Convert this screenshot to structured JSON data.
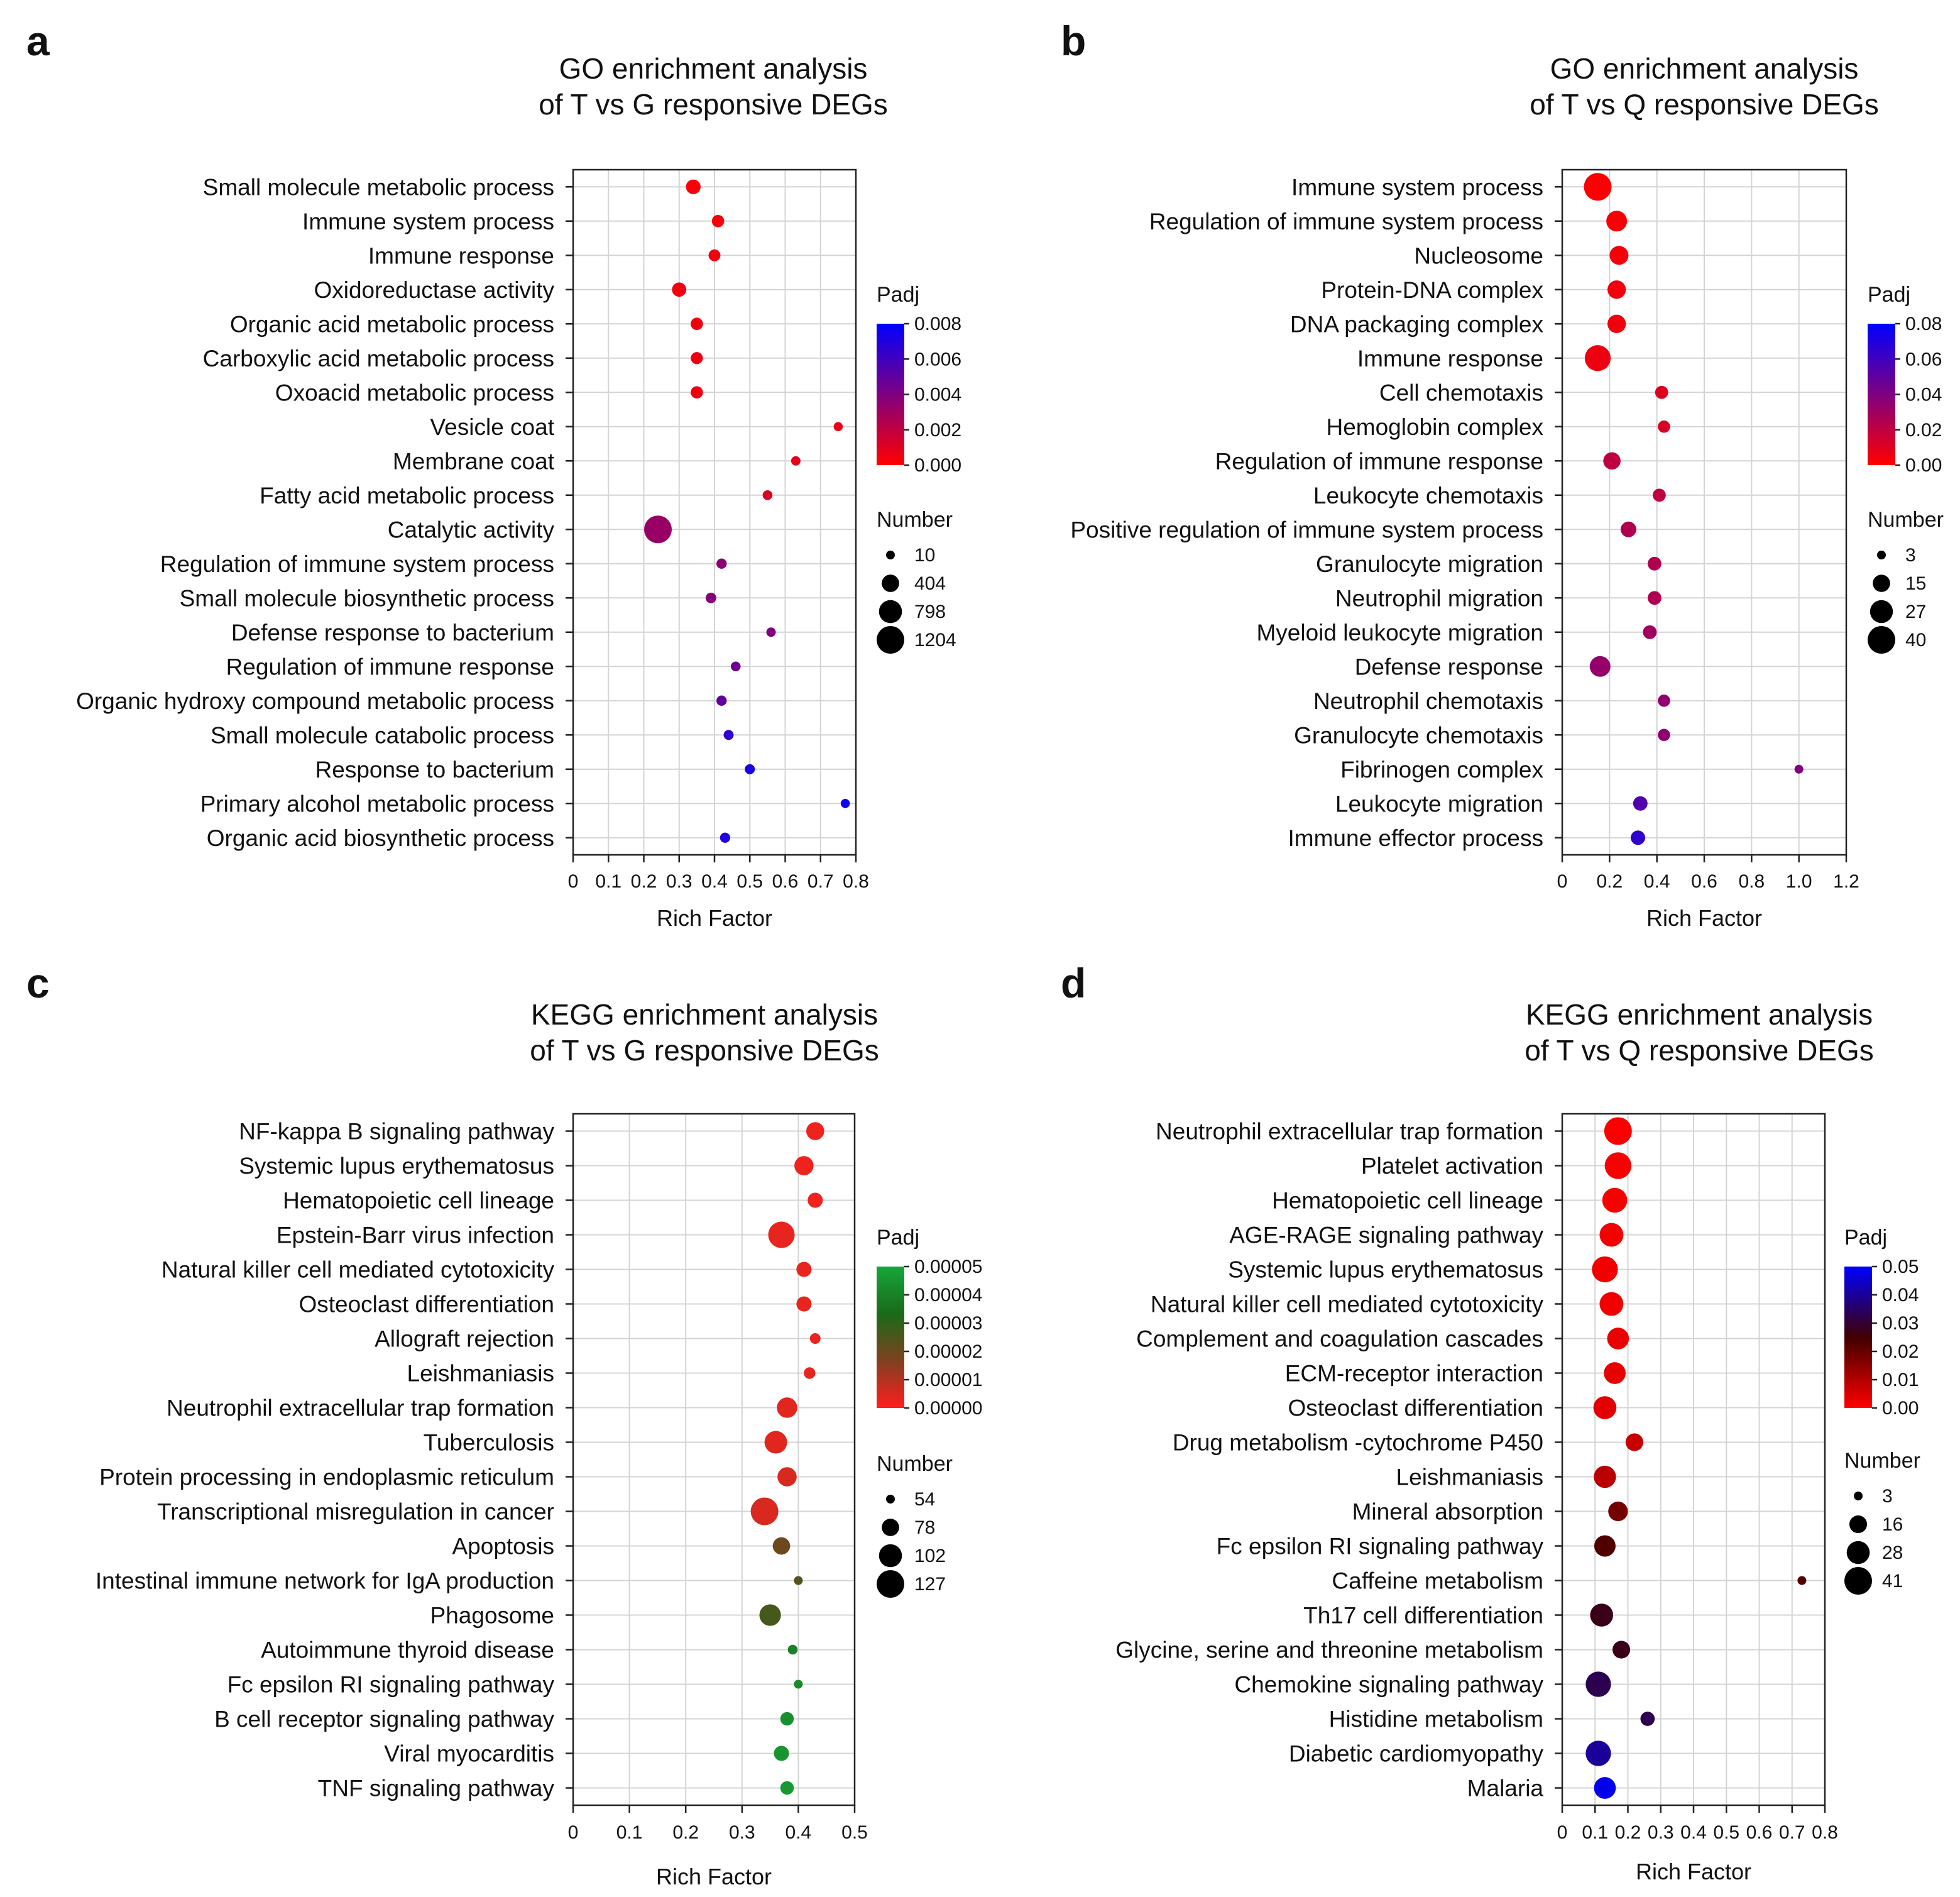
{
  "chart_data": [
    {
      "panel": "a",
      "type": "scatter",
      "title": "GO enrichment analysis\nof T vs G responsive DEGs",
      "xlabel": "Rich Factor",
      "ylabel": "",
      "xlim": [
        0,
        0.8
      ],
      "xticks": [
        0,
        0.1,
        0.2,
        0.3,
        0.4,
        0.5,
        0.6,
        0.7,
        0.8
      ],
      "xtick_labels": [
        "0",
        "0.1",
        "0.2",
        "0.3",
        "0.4",
        "0.5",
        "0.6",
        "0.7",
        "0.8"
      ],
      "grid": true,
      "color_legend": {
        "title": "Padj",
        "ticks": [
          "0.008",
          "0.006",
          "0.004",
          "0.002",
          "0.000"
        ],
        "min": 0,
        "max": 0.008,
        "colors": [
          "#ff0000",
          "#0000ff"
        ]
      },
      "size_legend": {
        "title": "Number",
        "values": [
          10,
          404,
          798,
          1204
        ],
        "labels": [
          "10",
          "404",
          "798",
          "1204"
        ]
      },
      "points": [
        {
          "term": "Small molecule metabolic process",
          "x": 0.34,
          "padj": 0.0002,
          "number": 250
        },
        {
          "term": "Immune system process",
          "x": 0.41,
          "padj": 0.0003,
          "number": 140
        },
        {
          "term": "Immune response",
          "x": 0.4,
          "padj": 0.0004,
          "number": 120
        },
        {
          "term": "Oxidoreductase activity",
          "x": 0.3,
          "padj": 0.0004,
          "number": 230
        },
        {
          "term": "Organic acid metabolic process",
          "x": 0.35,
          "padj": 0.0005,
          "number": 140
        },
        {
          "term": "Carboxylic acid metabolic process",
          "x": 0.35,
          "padj": 0.0005,
          "number": 130
        },
        {
          "term": "Oxoacid metabolic process",
          "x": 0.35,
          "padj": 0.0005,
          "number": 135
        },
        {
          "term": "Vesicle coat",
          "x": 0.75,
          "padj": 0.0007,
          "number": 20
        },
        {
          "term": "Membrane coat",
          "x": 0.63,
          "padj": 0.0008,
          "number": 30
        },
        {
          "term": "Fatty acid metabolic process",
          "x": 0.55,
          "padj": 0.0012,
          "number": 40
        },
        {
          "term": "Catalytic activity",
          "x": 0.24,
          "padj": 0.0032,
          "number": 1204
        },
        {
          "term": "Regulation of immune system process",
          "x": 0.42,
          "padj": 0.0036,
          "number": 60
        },
        {
          "term": "Small molecule biosynthetic process",
          "x": 0.39,
          "padj": 0.0038,
          "number": 70
        },
        {
          "term": "Defense response to bacterium",
          "x": 0.56,
          "padj": 0.004,
          "number": 30
        },
        {
          "term": "Regulation of immune response",
          "x": 0.46,
          "padj": 0.0045,
          "number": 40
        },
        {
          "term": "Organic hydroxy compound metabolic process",
          "x": 0.42,
          "padj": 0.005,
          "number": 60
        },
        {
          "term": "Small molecule catabolic process",
          "x": 0.44,
          "padj": 0.0065,
          "number": 50
        },
        {
          "term": "Response to bacterium",
          "x": 0.5,
          "padj": 0.0072,
          "number": 50
        },
        {
          "term": "Primary alcohol metabolic process",
          "x": 0.77,
          "padj": 0.0075,
          "number": 20
        },
        {
          "term": "Organic acid biosynthetic process",
          "x": 0.43,
          "padj": 0.007,
          "number": 55
        }
      ]
    },
    {
      "panel": "b",
      "type": "scatter",
      "title": "GO enrichment analysis\nof T vs Q responsive DEGs",
      "xlabel": "Rich Factor",
      "ylabel": "",
      "xlim": [
        0,
        1.2
      ],
      "xticks": [
        0,
        0.2,
        0.4,
        0.6,
        0.8,
        1.0,
        1.2
      ],
      "xtick_labels": [
        "0",
        "0.2",
        "0.4",
        "0.6",
        "0.8",
        "1.0",
        "1.2"
      ],
      "grid": true,
      "color_legend": {
        "title": "Padj",
        "ticks": [
          "0.08",
          "0.06",
          "0.04",
          "0.02",
          "0.00"
        ],
        "min": 0,
        "max": 0.08,
        "colors": [
          "#ff0000",
          "#0000ff"
        ]
      },
      "size_legend": {
        "title": "Number",
        "values": [
          3,
          15,
          27,
          40
        ],
        "labels": [
          "3",
          "15",
          "27",
          "40"
        ]
      },
      "points": [
        {
          "term": "Immune system process",
          "x": 0.15,
          "padj": 0.001,
          "number": 40
        },
        {
          "term": "Regulation of immune system process",
          "x": 0.23,
          "padj": 0.002,
          "number": 22
        },
        {
          "term": "Nucleosome",
          "x": 0.24,
          "padj": 0.003,
          "number": 18
        },
        {
          "term": "Protein-DNA complex",
          "x": 0.23,
          "padj": 0.004,
          "number": 17
        },
        {
          "term": "DNA packaging complex",
          "x": 0.23,
          "padj": 0.004,
          "number": 17
        },
        {
          "term": "Immune response",
          "x": 0.15,
          "padj": 0.005,
          "number": 35
        },
        {
          "term": "Cell chemotaxis",
          "x": 0.42,
          "padj": 0.01,
          "number": 8
        },
        {
          "term": "Hemoglobin complex",
          "x": 0.43,
          "padj": 0.012,
          "number": 7
        },
        {
          "term": "Regulation of immune response",
          "x": 0.21,
          "padj": 0.02,
          "number": 15
        },
        {
          "term": "Leukocyte chemotaxis",
          "x": 0.41,
          "padj": 0.02,
          "number": 8
        },
        {
          "term": "Positive regulation of immune system process",
          "x": 0.28,
          "padj": 0.025,
          "number": 12
        },
        {
          "term": "Granulocyte migration",
          "x": 0.39,
          "padj": 0.025,
          "number": 9
        },
        {
          "term": "Neutrophil migration",
          "x": 0.39,
          "padj": 0.025,
          "number": 9
        },
        {
          "term": "Myeloid leukocyte migration",
          "x": 0.37,
          "padj": 0.03,
          "number": 9
        },
        {
          "term": "Defense response",
          "x": 0.16,
          "padj": 0.033,
          "number": 22
        },
        {
          "term": "Neutrophil chemotaxis",
          "x": 0.43,
          "padj": 0.035,
          "number": 7
        },
        {
          "term": "Granulocyte chemotaxis",
          "x": 0.43,
          "padj": 0.035,
          "number": 7
        },
        {
          "term": "Fibrinogen complex",
          "x": 1.0,
          "padj": 0.04,
          "number": 3
        },
        {
          "term": "Leukocyte migration",
          "x": 0.33,
          "padj": 0.055,
          "number": 10
        },
        {
          "term": "Immune effector process",
          "x": 0.32,
          "padj": 0.065,
          "number": 10
        }
      ]
    },
    {
      "panel": "c",
      "type": "scatter",
      "title": "KEGG enrichment analysis\nof T vs G responsive DEGs",
      "xlabel": "Rich Factor",
      "ylabel": "",
      "xlim": [
        0,
        0.5
      ],
      "xticks": [
        0,
        0.1,
        0.2,
        0.3,
        0.4,
        0.5
      ],
      "xtick_labels": [
        "0",
        "0.1",
        "0.2",
        "0.3",
        "0.4",
        "0.5"
      ],
      "grid": true,
      "color_legend": {
        "title": "Padj",
        "ticks": [
          "0.00005",
          "0.00004",
          "0.00003",
          "0.00002",
          "0.00001",
          "0.00000"
        ],
        "min": 0,
        "max": 5e-05,
        "colors": [
          "#ff1e1e",
          "#804020",
          "#1a6a1a",
          "#17a63a"
        ]
      },
      "size_legend": {
        "title": "Number",
        "values": [
          54,
          78,
          102,
          127
        ],
        "labels": [
          "54",
          "78",
          "102",
          "127"
        ]
      },
      "points": [
        {
          "term": "NF-kappa B signaling pathway",
          "x": 0.43,
          "padj": 2e-06,
          "number": 80
        },
        {
          "term": "Systemic lupus erythematosus",
          "x": 0.41,
          "padj": 2e-06,
          "number": 85
        },
        {
          "term": "Hematopoietic cell lineage",
          "x": 0.43,
          "padj": 2e-06,
          "number": 70
        },
        {
          "term": "Epstein-Barr virus infection",
          "x": 0.37,
          "padj": 3e-06,
          "number": 120
        },
        {
          "term": "Natural killer cell mediated cytotoxicity",
          "x": 0.41,
          "padj": 3e-06,
          "number": 70
        },
        {
          "term": "Osteoclast differentiation",
          "x": 0.41,
          "padj": 3e-06,
          "number": 70
        },
        {
          "term": "Allograft rejection",
          "x": 0.43,
          "padj": 3e-06,
          "number": 58
        },
        {
          "term": "Leishmaniasis",
          "x": 0.42,
          "padj": 3e-06,
          "number": 60
        },
        {
          "term": "Neutrophil extracellular trap formation",
          "x": 0.38,
          "padj": 4e-06,
          "number": 90
        },
        {
          "term": "Tuberculosis",
          "x": 0.36,
          "padj": 4e-06,
          "number": 100
        },
        {
          "term": "Protein processing in endoplasmic reticulum",
          "x": 0.38,
          "padj": 5e-06,
          "number": 85
        },
        {
          "term": "Transcriptional misregulation in cancer",
          "x": 0.34,
          "padj": 5e-06,
          "number": 127
        },
        {
          "term": "Apoptosis",
          "x": 0.37,
          "padj": 2e-05,
          "number": 78
        },
        {
          "term": "Intestinal immune network for IgA production",
          "x": 0.4,
          "padj": 2.4e-05,
          "number": 54
        },
        {
          "term": "Phagosome",
          "x": 0.35,
          "padj": 2.6e-05,
          "number": 95
        },
        {
          "term": "Autoimmune thyroid disease",
          "x": 0.39,
          "padj": 4e-05,
          "number": 56
        },
        {
          "term": "Fc epsilon RI signaling pathway",
          "x": 0.4,
          "padj": 4.2e-05,
          "number": 54
        },
        {
          "term": "B cell receptor signaling pathway",
          "x": 0.38,
          "padj": 4.4e-05,
          "number": 65
        },
        {
          "term": "Viral myocarditis",
          "x": 0.37,
          "padj": 4.5e-05,
          "number": 70
        },
        {
          "term": "TNF signaling pathway",
          "x": 0.38,
          "padj": 4.6e-05,
          "number": 65
        }
      ]
    },
    {
      "panel": "d",
      "type": "scatter",
      "title": "KEGG enrichment analysis\nof T vs Q responsive DEGs",
      "xlabel": "Rich Factor",
      "ylabel": "",
      "xlim": [
        0,
        0.8
      ],
      "xticks": [
        0,
        0.1,
        0.2,
        0.3,
        0.4,
        0.5,
        0.6,
        0.7,
        0.8
      ],
      "xtick_labels": [
        "0",
        "0.1",
        "0.2",
        "0.3",
        "0.4",
        "0.5",
        "0.6",
        "0.7",
        "0.8"
      ],
      "grid": true,
      "color_legend": {
        "title": "Padj",
        "ticks": [
          "0.05",
          "0.04",
          "0.03",
          "0.02",
          "0.01",
          "0.00"
        ],
        "min": 0,
        "max": 0.055,
        "colors": [
          "#ff0000",
          "#400000",
          "#0000ff"
        ]
      },
      "size_legend": {
        "title": "Number",
        "values": [
          3,
          16,
          28,
          41
        ],
        "labels": [
          "3",
          "16",
          "28",
          "41"
        ]
      },
      "points": [
        {
          "term": "Neutrophil extracellular trap formation",
          "x": 0.17,
          "padj": 0.0005,
          "number": 41
        },
        {
          "term": "Platelet activation",
          "x": 0.17,
          "padj": 0.0007,
          "number": 38
        },
        {
          "term": "Hematopoietic cell lineage",
          "x": 0.16,
          "padj": 0.001,
          "number": 33
        },
        {
          "term": "AGE-RAGE signaling pathway",
          "x": 0.15,
          "padj": 0.0015,
          "number": 30
        },
        {
          "term": "Systemic lupus erythematosus",
          "x": 0.13,
          "padj": 0.002,
          "number": 36
        },
        {
          "term": "Natural killer cell mediated cytotoxicity",
          "x": 0.15,
          "padj": 0.002,
          "number": 30
        },
        {
          "term": "Complement and coagulation cascades",
          "x": 0.17,
          "padj": 0.003,
          "number": 25
        },
        {
          "term": "ECM-receptor interaction",
          "x": 0.16,
          "padj": 0.0035,
          "number": 25
        },
        {
          "term": "Osteoclast differentiation",
          "x": 0.13,
          "padj": 0.004,
          "number": 28
        },
        {
          "term": "Drug metabolism -cytochrome P450",
          "x": 0.22,
          "padj": 0.008,
          "number": 16
        },
        {
          "term": "Leishmaniasis",
          "x": 0.13,
          "padj": 0.01,
          "number": 26
        },
        {
          "term": "Mineral absorption",
          "x": 0.17,
          "padj": 0.02,
          "number": 20
        },
        {
          "term": "Fc epsilon RI signaling pathway",
          "x": 0.13,
          "padj": 0.025,
          "number": 24
        },
        {
          "term": "Caffeine metabolism",
          "x": 0.73,
          "padj": 0.025,
          "number": 3
        },
        {
          "term": "Th17 cell differentiation",
          "x": 0.12,
          "padj": 0.03,
          "number": 28
        },
        {
          "term": "Glycine, serine and threonine metabolism",
          "x": 0.18,
          "padj": 0.03,
          "number": 16
        },
        {
          "term": "Chemokine signaling pathway",
          "x": 0.11,
          "padj": 0.036,
          "number": 34
        },
        {
          "term": "Histidine metabolism",
          "x": 0.26,
          "padj": 0.036,
          "number": 10
        },
        {
          "term": "Diabetic cardiomyopathy",
          "x": 0.11,
          "padj": 0.044,
          "number": 34
        },
        {
          "term": "Malaria",
          "x": 0.13,
          "padj": 0.053,
          "number": 25
        }
      ]
    }
  ]
}
